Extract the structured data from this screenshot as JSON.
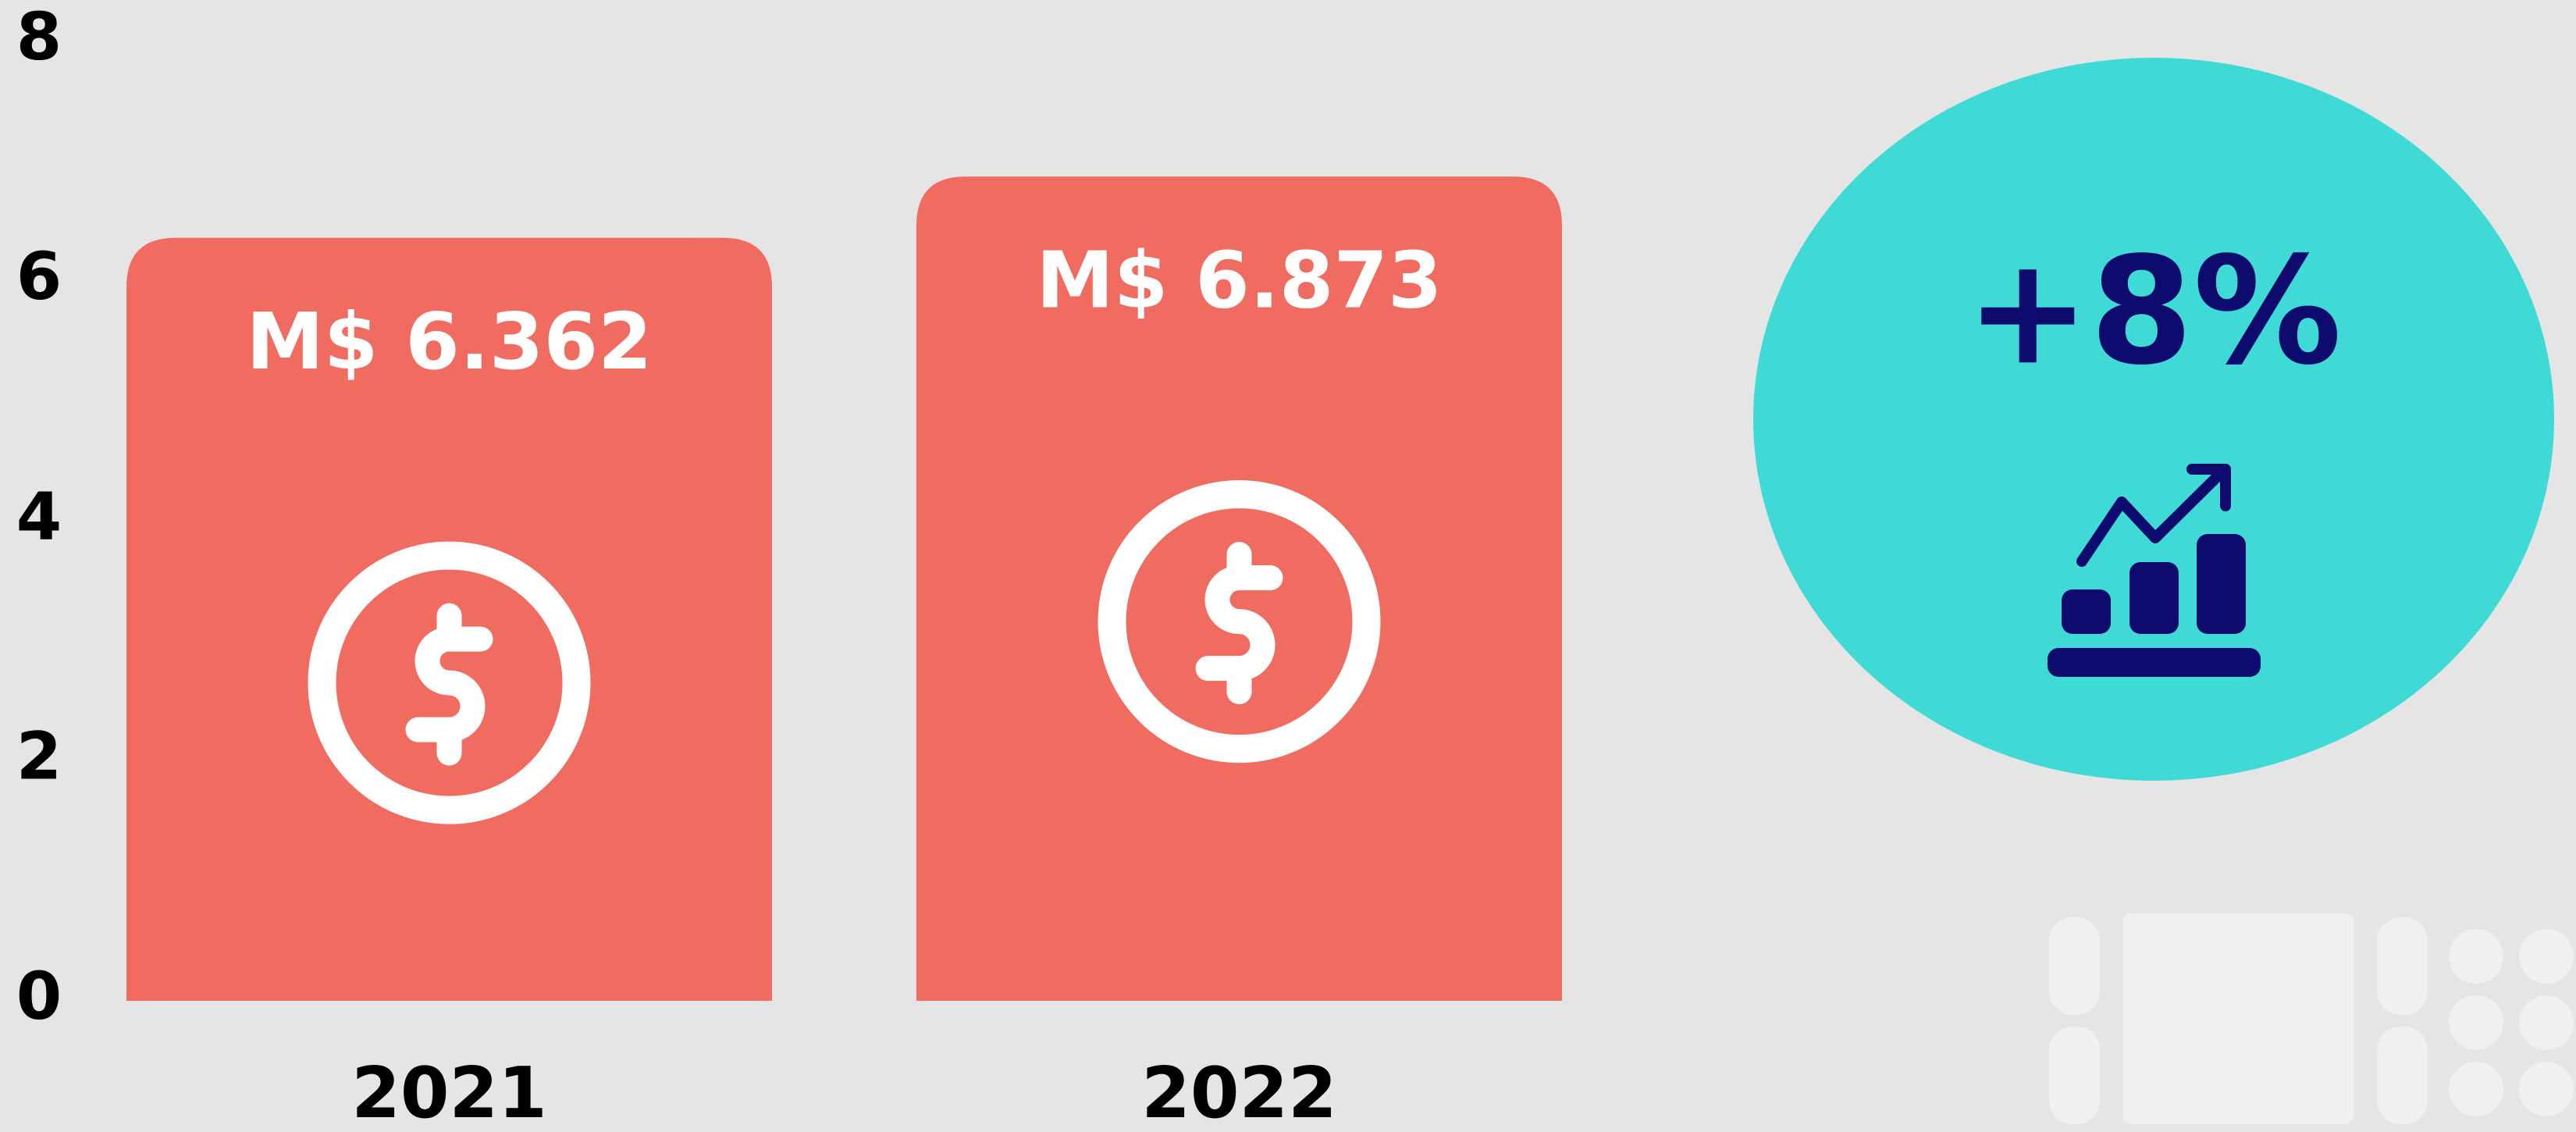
{
  "chart_data": {
    "type": "bar",
    "categories": [
      "2021",
      "2022"
    ],
    "values": [
      6.362,
      6.873
    ],
    "value_labels": [
      "M$ 6.362",
      "M$ 6.873"
    ],
    "color": "#f06b60",
    "ylim": [
      0,
      8
    ],
    "yticks": [
      0,
      2,
      4,
      6,
      8
    ],
    "annotation": "+8%"
  }
}
